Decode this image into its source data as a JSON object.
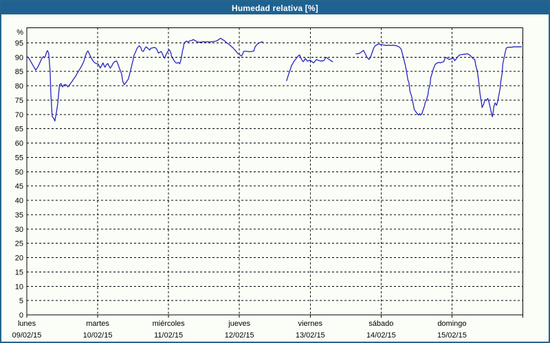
{
  "window": {
    "title": "Humedad relativa [%]",
    "title_bg": "#1f6291",
    "title_color": "#ffffff",
    "border_color": "#26648c",
    "background": "#fbfef7"
  },
  "chart_data": {
    "type": "line",
    "title": "Humedad relativa [%]",
    "series_name": "Humedad relativa",
    "ylabel": "%",
    "unit_label": "%",
    "ylim": [
      0,
      100
    ],
    "y_ticks": [
      0,
      5,
      10,
      15,
      20,
      25,
      30,
      35,
      40,
      45,
      50,
      55,
      60,
      65,
      70,
      75,
      80,
      85,
      90,
      95
    ],
    "x_range_hours": [
      0,
      168
    ],
    "grid": "dashed",
    "legend": "none",
    "line_color": "#2424be",
    "axis_color": "#000000",
    "days": [
      {
        "name": "lunes",
        "date": "09/02/15"
      },
      {
        "name": "martes",
        "date": "10/02/15"
      },
      {
        "name": "miércoles",
        "date": "11/02/15"
      },
      {
        "name": "jueves",
        "date": "12/02/15"
      },
      {
        "name": "viernes",
        "date": "13/02/15"
      },
      {
        "name": "sábado",
        "date": "14/02/15"
      },
      {
        "name": "domingo",
        "date": "15/02/15"
      }
    ],
    "segments": [
      [
        [
          0,
          90.3
        ],
        [
          0.7,
          89.6
        ],
        [
          1.6,
          88
        ],
        [
          2.6,
          86.2
        ],
        [
          3,
          85.5
        ],
        [
          3.7,
          86.5
        ],
        [
          4.4,
          88
        ],
        [
          5.1,
          89.6
        ],
        [
          5.6,
          90.2
        ],
        [
          6,
          89.8
        ],
        [
          6.3,
          90.5
        ],
        [
          6.7,
          91.8
        ],
        [
          7,
          92.3
        ],
        [
          7.4,
          91.4
        ],
        [
          7.9,
          85
        ],
        [
          8.1,
          78
        ],
        [
          8.4,
          72.5
        ],
        [
          8.6,
          69.3
        ],
        [
          9.1,
          68.7
        ],
        [
          9.3,
          68.2
        ],
        [
          9.5,
          67.7
        ],
        [
          10,
          70.5
        ],
        [
          10.5,
          74
        ],
        [
          10.9,
          78.5
        ],
        [
          11.1,
          80.4
        ],
        [
          11.6,
          80.8
        ],
        [
          12.1,
          79.6
        ],
        [
          12.5,
          80.2
        ],
        [
          13,
          80.5
        ],
        [
          13.5,
          80.2
        ],
        [
          13.9,
          79.6
        ],
        [
          14.4,
          80.3
        ],
        [
          15.1,
          81.2
        ],
        [
          15.8,
          82.3
        ],
        [
          16.5,
          83.3
        ],
        [
          17.2,
          84.6
        ],
        [
          17.9,
          85.8
        ],
        [
          18.6,
          87
        ],
        [
          19.3,
          88.5
        ],
        [
          19.7,
          90
        ],
        [
          20.2,
          91.5
        ],
        [
          20.7,
          92.2
        ],
        [
          21.1,
          91.3
        ],
        [
          21.6,
          90.2
        ],
        [
          22.1,
          89.2
        ],
        [
          22.8,
          88.2
        ],
        [
          23.5,
          87.8
        ],
        [
          24.2,
          87.6
        ],
        [
          24.9,
          86.2
        ],
        [
          25.3,
          87
        ],
        [
          25.8,
          88
        ],
        [
          26.2,
          87
        ],
        [
          26.5,
          86.5
        ],
        [
          26.9,
          87.3
        ],
        [
          27.4,
          87.8
        ],
        [
          27.9,
          86.8
        ],
        [
          28.3,
          86.2
        ],
        [
          28.8,
          87
        ],
        [
          29.3,
          88
        ],
        [
          29.7,
          88.4
        ],
        [
          30.4,
          88.7
        ],
        [
          30.9,
          87.5
        ],
        [
          31.4,
          86
        ],
        [
          32.1,
          84.2
        ],
        [
          32.5,
          81.5
        ],
        [
          33,
          80.4
        ],
        [
          33.7,
          81.3
        ],
        [
          34.4,
          82.4
        ],
        [
          34.8,
          84
        ],
        [
          35.1,
          85.2
        ],
        [
          35.5,
          87
        ],
        [
          36,
          89
        ],
        [
          36.2,
          90.4
        ],
        [
          36.7,
          91.5
        ],
        [
          37.4,
          93.2
        ],
        [
          38.1,
          94
        ],
        [
          38.6,
          93.4
        ],
        [
          39,
          92.2
        ],
        [
          39.5,
          92
        ],
        [
          39.9,
          93
        ],
        [
          40.4,
          93.6
        ],
        [
          41.1,
          93
        ],
        [
          41.6,
          92.5
        ],
        [
          42,
          93.1
        ],
        [
          42.7,
          93.3
        ],
        [
          43.2,
          93.4
        ],
        [
          43.7,
          93.2
        ],
        [
          44.1,
          92.6
        ],
        [
          44.6,
          91.4
        ],
        [
          45.1,
          91.8
        ],
        [
          45.5,
          92
        ],
        [
          46,
          91
        ],
        [
          46.2,
          90.4
        ],
        [
          46.7,
          89.6
        ],
        [
          47.1,
          90.8
        ],
        [
          47.6,
          91.8
        ],
        [
          48.1,
          92.5
        ],
        [
          48.3,
          92.6
        ],
        [
          48.8,
          91.5
        ],
        [
          49,
          90.4
        ],
        [
          49.5,
          89.5
        ],
        [
          49.9,
          88.8
        ],
        [
          50.4,
          88.1
        ],
        [
          50.9,
          87.9
        ],
        [
          51.3,
          88.2
        ],
        [
          51.8,
          87.7
        ],
        [
          52.3,
          89.5
        ],
        [
          52.5,
          90.8
        ],
        [
          52.7,
          92
        ],
        [
          53,
          93.2
        ],
        [
          53.2,
          94.6
        ],
        [
          53.7,
          95.4
        ],
        [
          54.1,
          95.6
        ],
        [
          54.6,
          95.3
        ],
        [
          55,
          95.6
        ],
        [
          55.5,
          95.8
        ],
        [
          56,
          95.9
        ],
        [
          56.4,
          96.2
        ],
        [
          56.9,
          95.8
        ],
        [
          57.4,
          95.6
        ],
        [
          57.8,
          95.3
        ],
        [
          58.5,
          95.2
        ],
        [
          59.2,
          95.3
        ],
        [
          59.9,
          95.4
        ],
        [
          60.6,
          95.3
        ],
        [
          61.3,
          95.4
        ],
        [
          62,
          95.3
        ],
        [
          62.7,
          95.4
        ],
        [
          63.4,
          95.5
        ],
        [
          64.1,
          95.6
        ],
        [
          64.8,
          96
        ],
        [
          65.3,
          96.4
        ],
        [
          65.7,
          96.6
        ],
        [
          66.2,
          96.2
        ],
        [
          66.7,
          95.9
        ],
        [
          67.1,
          95.6
        ],
        [
          67.8,
          94.9
        ],
        [
          68.5,
          94.5
        ],
        [
          69.2,
          93.8
        ],
        [
          69.9,
          93.2
        ],
        [
          70.6,
          92.4
        ],
        [
          71.1,
          91.8
        ],
        [
          71.5,
          91.2
        ],
        [
          72,
          91
        ],
        [
          72.5,
          90.5
        ],
        [
          72.7,
          90.4
        ],
        [
          73.2,
          91.3
        ],
        [
          73.4,
          92
        ],
        [
          74.1,
          92.1
        ],
        [
          74.8,
          92
        ],
        [
          75.5,
          91.9
        ],
        [
          76.2,
          92
        ],
        [
          76.9,
          92.2
        ],
        [
          77.3,
          93.6
        ],
        [
          78,
          94.5
        ],
        [
          78.7,
          95
        ],
        [
          79.2,
          95.2
        ],
        [
          79.9,
          95.4
        ]
      ],
      [
        [
          88,
          81.8
        ],
        [
          88.5,
          83.5
        ],
        [
          88.9,
          84.8
        ],
        [
          89.4,
          86.2
        ],
        [
          89.7,
          87.2
        ],
        [
          90.1,
          87.8
        ],
        [
          90.4,
          88.4
        ],
        [
          90.8,
          89
        ],
        [
          91.3,
          89.6
        ],
        [
          91.7,
          90.2
        ],
        [
          92.4,
          90.8
        ],
        [
          92.9,
          89.5
        ],
        [
          93.6,
          88.4
        ],
        [
          94.1,
          89
        ],
        [
          94.3,
          89.6
        ],
        [
          94.8,
          89
        ],
        [
          95,
          88.6
        ],
        [
          95.5,
          88.8
        ],
        [
          95.9,
          89
        ],
        [
          96.4,
          88.6
        ],
        [
          97.1,
          88
        ],
        [
          97.6,
          88.6
        ],
        [
          98.2,
          89.2
        ],
        [
          98.7,
          88.9
        ],
        [
          99.4,
          88.7
        ],
        [
          100.1,
          88.7
        ],
        [
          100.6,
          88.8
        ],
        [
          101.3,
          90
        ],
        [
          102,
          89.5
        ],
        [
          102.7,
          89
        ],
        [
          103.1,
          88.7
        ],
        [
          103.6,
          88.4
        ]
      ],
      [
        [
          111.5,
          91.2
        ],
        [
          112.2,
          91.2
        ],
        [
          112.9,
          91.5
        ],
        [
          113.6,
          92
        ],
        [
          114,
          92.4
        ],
        [
          114.5,
          91.5
        ],
        [
          115.2,
          90
        ],
        [
          115.9,
          89.2
        ],
        [
          116.4,
          90
        ],
        [
          117.1,
          92
        ],
        [
          117.5,
          93.2
        ],
        [
          118,
          94
        ],
        [
          118.7,
          94.4
        ],
        [
          119.4,
          94.6
        ],
        [
          119.8,
          94.5
        ],
        [
          120.5,
          94.3
        ],
        [
          121.2,
          94.2
        ],
        [
          121.9,
          94.1
        ],
        [
          122.6,
          94.2
        ],
        [
          123.3,
          94.1
        ],
        [
          124,
          94.2
        ],
        [
          124.7,
          94.1
        ],
        [
          125.2,
          94
        ],
        [
          125.6,
          93.8
        ],
        [
          126.1,
          93.6
        ],
        [
          126.8,
          92.8
        ],
        [
          127.5,
          90
        ],
        [
          128,
          88
        ],
        [
          128.2,
          87.2
        ],
        [
          128.7,
          84.4
        ],
        [
          129.1,
          82
        ],
        [
          129.4,
          81.2
        ],
        [
          129.8,
          78
        ],
        [
          130.3,
          76.4
        ],
        [
          130.8,
          74
        ],
        [
          131.2,
          71.8
        ],
        [
          131.7,
          71
        ],
        [
          132.1,
          70.5
        ],
        [
          132.6,
          69.8
        ],
        [
          133.1,
          70.3
        ],
        [
          133.3,
          69.8
        ],
        [
          133.8,
          70.2
        ],
        [
          134.2,
          71.5
        ],
        [
          134.7,
          73
        ],
        [
          134.9,
          74
        ],
        [
          135.4,
          75.2
        ],
        [
          135.9,
          77
        ],
        [
          136.1,
          78.8
        ],
        [
          136.6,
          80.5
        ],
        [
          136.8,
          82.8
        ],
        [
          137.3,
          84.5
        ],
        [
          137.7,
          86
        ],
        [
          138.2,
          87.2
        ],
        [
          138.4,
          87.6
        ],
        [
          138.9,
          87.9
        ],
        [
          139.6,
          88.2
        ],
        [
          140,
          88
        ],
        [
          140.5,
          88.2
        ],
        [
          141.2,
          88.4
        ],
        [
          141.7,
          89.8
        ],
        [
          141.9,
          90
        ],
        [
          142.4,
          89.6
        ],
        [
          143.1,
          89.2
        ],
        [
          143.5,
          89.4
        ],
        [
          144,
          89.5
        ],
        [
          144.5,
          89.6
        ],
        [
          144.9,
          88.8
        ],
        [
          145.6,
          89.6
        ],
        [
          146.1,
          90.3
        ],
        [
          146.6,
          90.8
        ],
        [
          147.3,
          90.9
        ],
        [
          148,
          91
        ],
        [
          148.6,
          91.1
        ],
        [
          149.1,
          91.2
        ],
        [
          149.8,
          90.9
        ],
        [
          150.3,
          90.5
        ],
        [
          150.7,
          90
        ],
        [
          151.2,
          89.5
        ],
        [
          151.7,
          89.2
        ],
        [
          152.1,
          87
        ],
        [
          152.6,
          85
        ],
        [
          153.1,
          81.2
        ],
        [
          153.5,
          77.2
        ],
        [
          154,
          74
        ],
        [
          154.2,
          72.4
        ],
        [
          154.7,
          73.5
        ],
        [
          155.2,
          75.2
        ],
        [
          155.6,
          74.8
        ],
        [
          156.1,
          75.6
        ],
        [
          156.5,
          74.5
        ],
        [
          157,
          72.1
        ],
        [
          157.5,
          69.8
        ],
        [
          157.7,
          69.2
        ],
        [
          157.9,
          70.5
        ],
        [
          158.2,
          72.8
        ],
        [
          158.6,
          74
        ],
        [
          159.1,
          73.2
        ],
        [
          159.6,
          75
        ],
        [
          159.8,
          76.4
        ],
        [
          160.3,
          79
        ],
        [
          160.5,
          81.2
        ],
        [
          161,
          84.4
        ],
        [
          161.2,
          87.6
        ],
        [
          161.7,
          90
        ],
        [
          162.1,
          92
        ],
        [
          162.4,
          93.2
        ],
        [
          162.8,
          93.4
        ],
        [
          163.5,
          93.5
        ],
        [
          164.2,
          93.5
        ],
        [
          164.9,
          93.6
        ],
        [
          165.6,
          93.6
        ],
        [
          166.3,
          93.6
        ],
        [
          167,
          93.6
        ],
        [
          167.5,
          93.6
        ]
      ]
    ]
  }
}
